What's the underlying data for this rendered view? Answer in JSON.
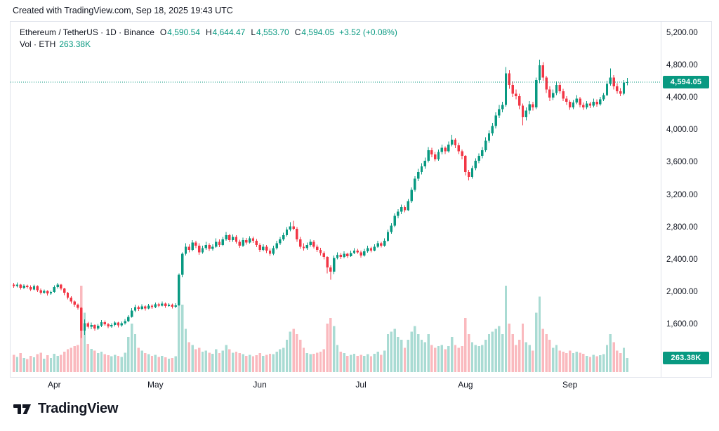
{
  "attribution": "Created with TradingView.com, Sep 18, 2025 19:43 UTC",
  "legend": {
    "title": "Ethereum / TetherUS · 1D · Binance",
    "ohlc": [
      {
        "label": "O",
        "value": "4,590.54"
      },
      {
        "label": "H",
        "value": "4,644.47"
      },
      {
        "label": "L",
        "value": "4,553.70"
      },
      {
        "label": "C",
        "value": "4,594.05"
      }
    ],
    "change": "+3.52 (+0.08%)",
    "vol_label": "Vol · ETH",
    "vol_value": "263.38K"
  },
  "footer": {
    "brand": "TradingView"
  },
  "colors": {
    "up": "#089981",
    "down": "#F23645",
    "accent": "#089981",
    "text": "#131722",
    "axis_line": "#e0e3eb"
  },
  "chart_data": {
    "type": "candlestick",
    "symbol": "Ethereum / TetherUS",
    "interval": "1D",
    "exchange": "Binance",
    "title": "Ethereum / TetherUS · 1D · Binance",
    "last_ohlc": {
      "open": 4590.54,
      "high": 4644.47,
      "low": 4553.7,
      "close": 4594.05,
      "change": 3.52,
      "change_pct": 0.08
    },
    "volume_unit": "K",
    "price_ylim": [
      1600,
      5200
    ],
    "grid": false,
    "price_axis_ticks": [
      {
        "text": "5,200.00",
        "value": 5200
      },
      {
        "text": "4,800.00",
        "value": 4800
      },
      {
        "text": "4,400.00",
        "value": 4400
      },
      {
        "text": "4,000.00",
        "value": 4000
      },
      {
        "text": "3,600.00",
        "value": 3600
      },
      {
        "text": "3,200.00",
        "value": 3200
      },
      {
        "text": "2,800.00",
        "value": 2800
      },
      {
        "text": "2,400.00",
        "value": 2400
      },
      {
        "text": "2,000.00",
        "value": 2000
      },
      {
        "text": "1,600.00",
        "value": 1600
      }
    ],
    "x_labels": [
      {
        "text": "Apr",
        "index": 12
      },
      {
        "text": "May",
        "index": 42
      },
      {
        "text": "Jun",
        "index": 73
      },
      {
        "text": "Jul",
        "index": 103
      },
      {
        "text": "Aug",
        "index": 134
      },
      {
        "text": "Sep",
        "index": 165
      }
    ],
    "last_price_label": {
      "text": "4,594.05",
      "value": 4594.05
    },
    "last_volume_label": {
      "text": "263.38K",
      "value": 263.38
    },
    "candles": [
      [
        2090,
        2110,
        2050,
        2070,
        320
      ],
      [
        2070,
        2115,
        2055,
        2090,
        280
      ],
      [
        2090,
        2100,
        2030,
        2050,
        350
      ],
      [
        2050,
        2095,
        2035,
        2075,
        260
      ],
      [
        2075,
        2090,
        2040,
        2060,
        240
      ],
      [
        2060,
        2080,
        2010,
        2030,
        300
      ],
      [
        2030,
        2090,
        2020,
        2070,
        270
      ],
      [
        2070,
        2080,
        2000,
        2020,
        330
      ],
      [
        2020,
        2040,
        1970,
        1990,
        360
      ],
      [
        1990,
        2030,
        1975,
        2010,
        250
      ],
      [
        2010,
        2020,
        1955,
        1980,
        310
      ],
      [
        1980,
        2015,
        1965,
        2000,
        260
      ],
      [
        2000,
        2080,
        1990,
        2060,
        340
      ],
      [
        2060,
        2110,
        2040,
        2090,
        300
      ],
      [
        2090,
        2100,
        2020,
        2040,
        320
      ],
      [
        2040,
        2050,
        1960,
        1990,
        380
      ],
      [
        1990,
        2000,
        1905,
        1930,
        420
      ],
      [
        1930,
        1945,
        1855,
        1880,
        450
      ],
      [
        1880,
        1895,
        1815,
        1840,
        480
      ],
      [
        1840,
        1855,
        1780,
        1805,
        500
      ],
      [
        1805,
        1810,
        1430,
        1520,
        1600
      ],
      [
        1520,
        1660,
        1470,
        1610,
        1100
      ],
      [
        1610,
        1630,
        1545,
        1570,
        520
      ],
      [
        1570,
        1620,
        1540,
        1590,
        430
      ],
      [
        1590,
        1600,
        1520,
        1545,
        400
      ],
      [
        1545,
        1605,
        1530,
        1580,
        350
      ],
      [
        1580,
        1650,
        1565,
        1625,
        380
      ],
      [
        1625,
        1645,
        1580,
        1600,
        330
      ],
      [
        1600,
        1615,
        1550,
        1575,
        310
      ],
      [
        1575,
        1610,
        1555,
        1590,
        290
      ],
      [
        1590,
        1640,
        1575,
        1620,
        320
      ],
      [
        1620,
        1630,
        1560,
        1585,
        300
      ],
      [
        1585,
        1635,
        1570,
        1610,
        280
      ],
      [
        1610,
        1665,
        1595,
        1640,
        360
      ],
      [
        1640,
        1710,
        1625,
        1690,
        650
      ],
      [
        1690,
        1800,
        1680,
        1770,
        900
      ],
      [
        1770,
        1840,
        1750,
        1810,
        700
      ],
      [
        1810,
        1830,
        1765,
        1790,
        450
      ],
      [
        1790,
        1845,
        1775,
        1820,
        400
      ],
      [
        1820,
        1835,
        1770,
        1795,
        350
      ],
      [
        1795,
        1850,
        1785,
        1830,
        330
      ],
      [
        1830,
        1845,
        1790,
        1810,
        300
      ],
      [
        1810,
        1870,
        1800,
        1845,
        320
      ],
      [
        1845,
        1865,
        1810,
        1830,
        280
      ],
      [
        1830,
        1880,
        1820,
        1855,
        300
      ],
      [
        1855,
        1870,
        1805,
        1825,
        270
      ],
      [
        1825,
        1860,
        1815,
        1840,
        250
      ],
      [
        1840,
        1855,
        1795,
        1815,
        260
      ],
      [
        1815,
        1860,
        1800,
        1835,
        290
      ],
      [
        1835,
        2230,
        1830,
        2210,
        1400
      ],
      [
        2210,
        2490,
        2180,
        2470,
        1250
      ],
      [
        2470,
        2600,
        2450,
        2560,
        800
      ],
      [
        2560,
        2590,
        2490,
        2520,
        550
      ],
      [
        2520,
        2640,
        2500,
        2610,
        500
      ],
      [
        2610,
        2630,
        2540,
        2570,
        420
      ],
      [
        2570,
        2600,
        2460,
        2490,
        450
      ],
      [
        2490,
        2570,
        2470,
        2540,
        380
      ],
      [
        2540,
        2620,
        2520,
        2580,
        400
      ],
      [
        2580,
        2600,
        2505,
        2530,
        360
      ],
      [
        2530,
        2590,
        2510,
        2560,
        340
      ],
      [
        2560,
        2660,
        2545,
        2620,
        420
      ],
      [
        2620,
        2650,
        2555,
        2580,
        350
      ],
      [
        2580,
        2680,
        2565,
        2650,
        400
      ],
      [
        2650,
        2740,
        2630,
        2700,
        500
      ],
      [
        2700,
        2720,
        2615,
        2640,
        420
      ],
      [
        2640,
        2710,
        2620,
        2680,
        360
      ],
      [
        2680,
        2700,
        2595,
        2620,
        380
      ],
      [
        2620,
        2645,
        2545,
        2570,
        350
      ],
      [
        2570,
        2670,
        2555,
        2640,
        330
      ],
      [
        2640,
        2665,
        2585,
        2610,
        300
      ],
      [
        2610,
        2690,
        2595,
        2660,
        320
      ],
      [
        2660,
        2685,
        2605,
        2630,
        290
      ],
      [
        2630,
        2655,
        2555,
        2580,
        310
      ],
      [
        2580,
        2600,
        2495,
        2520,
        350
      ],
      [
        2520,
        2590,
        2500,
        2560,
        300
      ],
      [
        2560,
        2580,
        2480,
        2510,
        320
      ],
      [
        2510,
        2535,
        2445,
        2470,
        340
      ],
      [
        2470,
        2570,
        2455,
        2540,
        330
      ],
      [
        2540,
        2630,
        2525,
        2600,
        380
      ],
      [
        2600,
        2680,
        2580,
        2650,
        420
      ],
      [
        2650,
        2730,
        2630,
        2700,
        450
      ],
      [
        2700,
        2800,
        2685,
        2770,
        600
      ],
      [
        2770,
        2860,
        2750,
        2810,
        750
      ],
      [
        2810,
        2880,
        2760,
        2780,
        800
      ],
      [
        2780,
        2800,
        2620,
        2650,
        700
      ],
      [
        2650,
        2680,
        2530,
        2560,
        600
      ],
      [
        2560,
        2600,
        2510,
        2540,
        450
      ],
      [
        2540,
        2610,
        2520,
        2580,
        350
      ],
      [
        2580,
        2650,
        2560,
        2620,
        330
      ],
      [
        2620,
        2640,
        2535,
        2560,
        340
      ],
      [
        2560,
        2585,
        2495,
        2520,
        360
      ],
      [
        2520,
        2545,
        2450,
        2480,
        380
      ],
      [
        2480,
        2500,
        2400,
        2430,
        420
      ],
      [
        2430,
        2440,
        2230,
        2300,
        900
      ],
      [
        2300,
        2330,
        2150,
        2250,
        1000
      ],
      [
        2250,
        2450,
        2220,
        2420,
        850
      ],
      [
        2420,
        2490,
        2400,
        2460,
        500
      ],
      [
        2460,
        2480,
        2405,
        2430,
        380
      ],
      [
        2430,
        2500,
        2415,
        2470,
        350
      ],
      [
        2470,
        2485,
        2420,
        2440,
        300
      ],
      [
        2440,
        2510,
        2430,
        2480,
        320
      ],
      [
        2480,
        2540,
        2465,
        2510,
        340
      ],
      [
        2510,
        2530,
        2470,
        2490,
        300
      ],
      [
        2490,
        2510,
        2425,
        2450,
        320
      ],
      [
        2450,
        2530,
        2435,
        2500,
        300
      ],
      [
        2500,
        2570,
        2485,
        2540,
        330
      ],
      [
        2540,
        2560,
        2490,
        2510,
        290
      ],
      [
        2510,
        2590,
        2500,
        2560,
        340
      ],
      [
        2560,
        2630,
        2545,
        2600,
        380
      ],
      [
        2600,
        2620,
        2550,
        2570,
        320
      ],
      [
        2570,
        2660,
        2560,
        2630,
        400
      ],
      [
        2630,
        2770,
        2620,
        2740,
        700
      ],
      [
        2740,
        2850,
        2720,
        2820,
        750
      ],
      [
        2820,
        2970,
        2800,
        2940,
        800
      ],
      [
        2940,
        3020,
        2910,
        2990,
        650
      ],
      [
        2990,
        3080,
        2960,
        3050,
        600
      ],
      [
        3050,
        3070,
        2985,
        3010,
        450
      ],
      [
        3010,
        3150,
        3000,
        3120,
        600
      ],
      [
        3120,
        3290,
        3100,
        3260,
        750
      ],
      [
        3260,
        3430,
        3240,
        3400,
        850
      ],
      [
        3400,
        3520,
        3370,
        3480,
        700
      ],
      [
        3480,
        3590,
        3450,
        3550,
        600
      ],
      [
        3550,
        3660,
        3520,
        3620,
        550
      ],
      [
        3620,
        3790,
        3600,
        3750,
        700
      ],
      [
        3750,
        3780,
        3665,
        3700,
        500
      ],
      [
        3700,
        3730,
        3610,
        3640,
        450
      ],
      [
        3640,
        3760,
        3620,
        3730,
        480
      ],
      [
        3730,
        3820,
        3700,
        3780,
        500
      ],
      [
        3780,
        3800,
        3705,
        3740,
        420
      ],
      [
        3740,
        3860,
        3720,
        3820,
        480
      ],
      [
        3820,
        3940,
        3800,
        3880,
        650
      ],
      [
        3880,
        3900,
        3775,
        3810,
        500
      ],
      [
        3810,
        3840,
        3705,
        3740,
        450
      ],
      [
        3740,
        3760,
        3640,
        3680,
        480
      ],
      [
        3680,
        3690,
        3440,
        3480,
        1000
      ],
      [
        3480,
        3510,
        3380,
        3420,
        700
      ],
      [
        3420,
        3560,
        3400,
        3530,
        550
      ],
      [
        3530,
        3650,
        3505,
        3620,
        500
      ],
      [
        3620,
        3710,
        3590,
        3680,
        480
      ],
      [
        3680,
        3790,
        3650,
        3750,
        500
      ],
      [
        3750,
        3910,
        3730,
        3870,
        600
      ],
      [
        3870,
        4000,
        3840,
        3960,
        700
      ],
      [
        3960,
        4090,
        3930,
        4050,
        750
      ],
      [
        4050,
        4220,
        4020,
        4180,
        800
      ],
      [
        4180,
        4310,
        4150,
        4260,
        850
      ],
      [
        4260,
        4350,
        4220,
        4310,
        700
      ],
      [
        4310,
        4780,
        4290,
        4700,
        1600
      ],
      [
        4700,
        4740,
        4510,
        4560,
        900
      ],
      [
        4560,
        4600,
        4410,
        4450,
        700
      ],
      [
        4450,
        4500,
        4380,
        4420,
        500
      ],
      [
        4420,
        4450,
        4260,
        4300,
        600
      ],
      [
        4300,
        4330,
        4060,
        4160,
        900
      ],
      [
        4160,
        4280,
        4120,
        4240,
        550
      ],
      [
        4240,
        4360,
        4200,
        4320,
        500
      ],
      [
        4320,
        4350,
        4240,
        4280,
        400
      ],
      [
        4280,
        4650,
        4260,
        4620,
        1100
      ],
      [
        4620,
        4870,
        4580,
        4800,
        1400
      ],
      [
        4800,
        4840,
        4610,
        4650,
        800
      ],
      [
        4650,
        4670,
        4460,
        4500,
        700
      ],
      [
        4500,
        4540,
        4360,
        4400,
        600
      ],
      [
        4400,
        4500,
        4370,
        4460,
        450
      ],
      [
        4460,
        4600,
        4430,
        4560,
        500
      ],
      [
        4560,
        4590,
        4450,
        4480,
        400
      ],
      [
        4480,
        4510,
        4360,
        4390,
        380
      ],
      [
        4390,
        4420,
        4310,
        4350,
        350
      ],
      [
        4350,
        4370,
        4250,
        4280,
        400
      ],
      [
        4280,
        4370,
        4260,
        4340,
        350
      ],
      [
        4340,
        4430,
        4320,
        4390,
        380
      ],
      [
        4390,
        4410,
        4280,
        4310,
        360
      ],
      [
        4310,
        4340,
        4250,
        4280,
        340
      ],
      [
        4280,
        4360,
        4260,
        4330,
        300
      ],
      [
        4330,
        4350,
        4270,
        4300,
        280
      ],
      [
        4300,
        4390,
        4280,
        4350,
        320
      ],
      [
        4350,
        4380,
        4290,
        4320,
        290
      ],
      [
        4320,
        4410,
        4300,
        4380,
        310
      ],
      [
        4380,
        4460,
        4360,
        4430,
        330
      ],
      [
        4430,
        4610,
        4420,
        4570,
        500
      ],
      [
        4570,
        4760,
        4550,
        4650,
        700
      ],
      [
        4650,
        4680,
        4500,
        4540,
        550
      ],
      [
        4540,
        4580,
        4450,
        4480,
        400
      ],
      [
        4480,
        4520,
        4420,
        4450,
        350
      ],
      [
        4450,
        4620,
        4430,
        4590,
        450
      ],
      [
        4590.54,
        4644.47,
        4553.7,
        4594.05,
        263.38
      ]
    ]
  }
}
